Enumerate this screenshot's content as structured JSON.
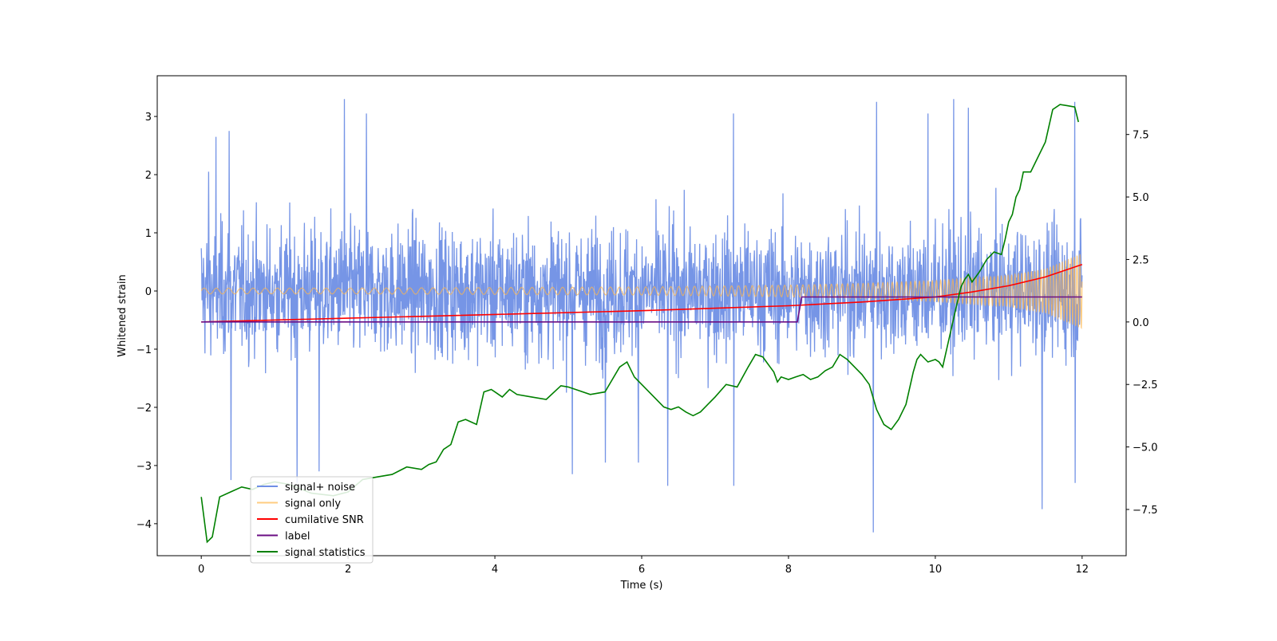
{
  "chart_data": {
    "type": "line",
    "title": "",
    "xlabel": "Time (s)",
    "ylabel": "Whitened strain",
    "y2label": "",
    "xlim": [
      -0.6,
      12.6
    ],
    "ylim": [
      -4.55,
      3.7
    ],
    "y2lim": [
      -9.35,
      9.85
    ],
    "xticks": [
      0,
      2,
      4,
      6,
      8,
      10,
      12
    ],
    "yticks": [
      -4,
      -3,
      -2,
      -1,
      0,
      1,
      2,
      3
    ],
    "y2ticks": [
      -7.5,
      -5.0,
      -2.5,
      0.0,
      2.5,
      5.0,
      7.5
    ],
    "y2tick_labels": [
      "−7.5",
      "−5.0",
      "−2.5",
      "0.0",
      "2.5",
      "5.0",
      "7.5"
    ],
    "grid": false,
    "legend_position": "lower-left",
    "series": [
      {
        "name": "signal+ noise",
        "axis": "left",
        "color": "#6f8fe5",
        "note": "noisy whitened strain, sample-level extremes",
        "extremes": [
          {
            "x": 0.1,
            "y": 2.05
          },
          {
            "x": 0.2,
            "y": 2.65
          },
          {
            "x": 0.38,
            "y": 2.75
          },
          {
            "x": 0.4,
            "y": -3.25
          },
          {
            "x": 1.3,
            "y": -3.3
          },
          {
            "x": 1.6,
            "y": -3.1
          },
          {
            "x": 1.95,
            "y": 3.3
          },
          {
            "x": 2.25,
            "y": 3.05
          },
          {
            "x": 5.05,
            "y": -3.15
          },
          {
            "x": 5.5,
            "y": -2.95
          },
          {
            "x": 5.95,
            "y": -2.95
          },
          {
            "x": 6.35,
            "y": -3.35
          },
          {
            "x": 7.25,
            "y": -3.35
          },
          {
            "x": 7.25,
            "y": 3.05
          },
          {
            "x": 9.15,
            "y": -4.15
          },
          {
            "x": 9.2,
            "y": 3.25
          },
          {
            "x": 9.9,
            "y": 3.05
          },
          {
            "x": 10.25,
            "y": 3.3
          },
          {
            "x": 10.45,
            "y": 3.15
          },
          {
            "x": 11.45,
            "y": -3.75
          },
          {
            "x": 11.9,
            "y": 3.25
          },
          {
            "x": 11.9,
            "y": -3.3
          }
        ]
      },
      {
        "name": "signal only",
        "axis": "left",
        "color": "#ffb74d",
        "note": "chirp oscillation with growing amplitude",
        "envelope": {
          "x": [
            0,
            2,
            4,
            6,
            8,
            9,
            10,
            11,
            11.5,
            12
          ],
          "amplitude": [
            0.05,
            0.05,
            0.06,
            0.07,
            0.1,
            0.13,
            0.18,
            0.27,
            0.38,
            0.65
          ]
        }
      },
      {
        "name": "cumilative SNR",
        "axis": "right",
        "color": "#ff0000",
        "x": [
          0,
          2,
          4,
          6,
          8,
          9,
          10,
          10.5,
          11,
          11.5,
          12
        ],
        "y": [
          0.0,
          0.15,
          0.3,
          0.45,
          0.65,
          0.8,
          1.0,
          1.2,
          1.45,
          1.8,
          2.3
        ]
      },
      {
        "name": "label",
        "axis": "right",
        "color": "#6a0d83",
        "x": [
          0,
          8.12,
          8.18,
          12
        ],
        "y": [
          0,
          0,
          1,
          1
        ]
      },
      {
        "name": "signal statistics",
        "axis": "right",
        "color": "#008000",
        "x": [
          0,
          0.08,
          0.15,
          0.25,
          0.4,
          0.55,
          0.7,
          0.85,
          1.0,
          1.2,
          1.5,
          1.8,
          2.0,
          2.2,
          2.4,
          2.6,
          2.8,
          3.0,
          3.1,
          3.2,
          3.3,
          3.4,
          3.5,
          3.6,
          3.75,
          3.85,
          3.95,
          4.0,
          4.1,
          4.2,
          4.3,
          4.5,
          4.7,
          4.9,
          5.0,
          5.1,
          5.3,
          5.5,
          5.7,
          5.8,
          5.9,
          6.0,
          6.1,
          6.3,
          6.4,
          6.5,
          6.6,
          6.7,
          6.8,
          7.0,
          7.15,
          7.3,
          7.45,
          7.55,
          7.65,
          7.7,
          7.75,
          7.8,
          7.85,
          7.9,
          8.0,
          8.1,
          8.2,
          8.3,
          8.4,
          8.5,
          8.6,
          8.7,
          8.8,
          8.9,
          9.0,
          9.1,
          9.2,
          9.3,
          9.4,
          9.5,
          9.6,
          9.7,
          9.75,
          9.8,
          9.9,
          10.0,
          10.05,
          10.1,
          10.2,
          10.3,
          10.35,
          10.4,
          10.45,
          10.5,
          10.6,
          10.7,
          10.8,
          10.9,
          10.95,
          11.0,
          11.05,
          11.1,
          11.15,
          11.2,
          11.3,
          11.4,
          11.5,
          11.6,
          11.7,
          11.8,
          11.9,
          11.95
        ],
        "y": [
          -7.0,
          -8.8,
          -8.6,
          -7.0,
          -6.8,
          -6.6,
          -6.7,
          -6.5,
          -6.4,
          -6.5,
          -6.85,
          -6.95,
          -6.8,
          -6.3,
          -6.2,
          -6.1,
          -5.8,
          -5.9,
          -5.7,
          -5.6,
          -5.1,
          -4.9,
          -4.0,
          -3.9,
          -4.1,
          -2.8,
          -2.7,
          -2.8,
          -3.0,
          -2.7,
          -2.9,
          -3.0,
          -3.1,
          -2.55,
          -2.6,
          -2.7,
          -2.9,
          -2.8,
          -1.8,
          -1.6,
          -2.2,
          -2.5,
          -2.8,
          -3.4,
          -3.5,
          -3.4,
          -3.6,
          -3.75,
          -3.6,
          -3.0,
          -2.5,
          -2.6,
          -1.8,
          -1.3,
          -1.4,
          -1.6,
          -1.8,
          -2.0,
          -2.4,
          -2.2,
          -2.3,
          -2.2,
          -2.1,
          -2.3,
          -2.2,
          -1.95,
          -1.8,
          -1.3,
          -1.5,
          -1.8,
          -2.1,
          -2.5,
          -3.5,
          -4.1,
          -4.3,
          -3.9,
          -3.3,
          -2.0,
          -1.5,
          -1.3,
          -1.6,
          -1.5,
          -1.6,
          -1.8,
          -0.5,
          0.8,
          1.4,
          1.7,
          1.9,
          1.6,
          2.0,
          2.5,
          2.8,
          2.7,
          3.3,
          4.0,
          4.3,
          5.0,
          5.3,
          6.0,
          6.0,
          6.6,
          7.2,
          8.5,
          8.7,
          8.65,
          8.6,
          8.0
        ]
      }
    ]
  }
}
